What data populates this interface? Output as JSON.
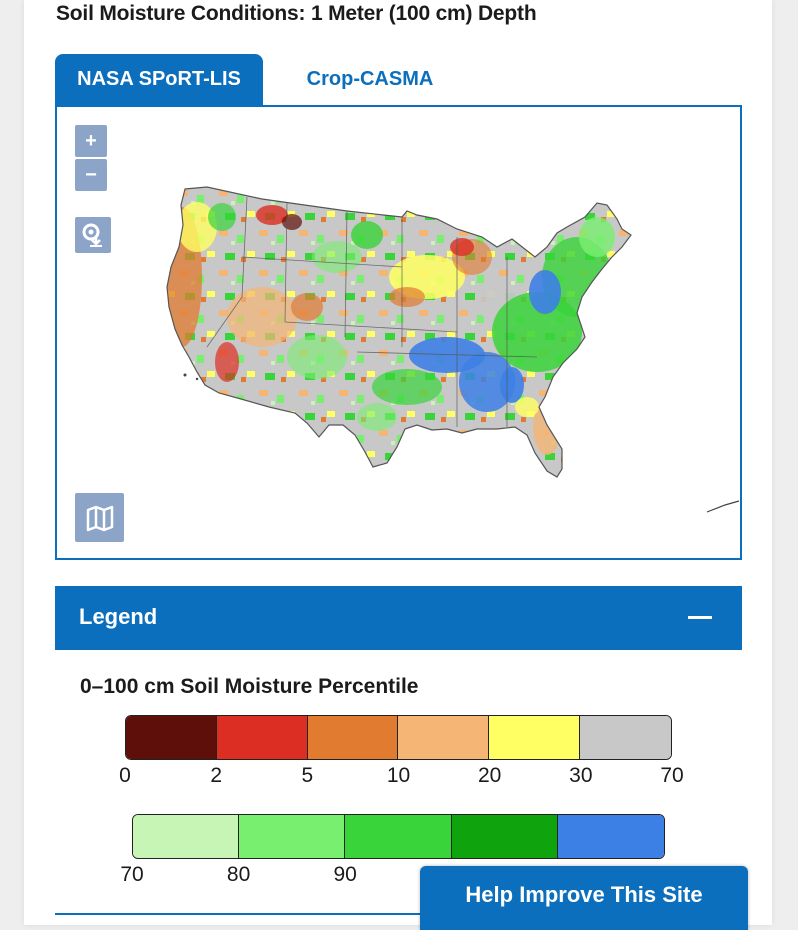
{
  "page": {
    "title": "Soil Moisture Conditions: 1 Meter (100 cm) Depth"
  },
  "tabs": [
    {
      "label": "NASA SPoRT-LIS",
      "active": true
    },
    {
      "label": "Crop-CASMA",
      "active": false
    }
  ],
  "map": {
    "zoom_in_label": "+",
    "zoom_out_label": "−",
    "icons": [
      "zoom-in-icon",
      "zoom-out-icon",
      "download-icon",
      "basemap-icon"
    ]
  },
  "legend": {
    "header": "Legend",
    "heading": "0–100 cm Soil Moisture Percentile",
    "dry_scale": {
      "colors": [
        "#5f0f0a",
        "#dc2e22",
        "#e07b30",
        "#f4b575",
        "#ffff63",
        "#c8c8c8"
      ],
      "ticks": [
        "0",
        "2",
        "5",
        "10",
        "20",
        "30",
        "70"
      ]
    },
    "wet_scale": {
      "colors": [
        "#c6f5b6",
        "#79ef6f",
        "#38d43a",
        "#0fa30e",
        "#3d80e5"
      ],
      "ticks": [
        "70",
        "80",
        "90"
      ]
    }
  },
  "help_button": "Help Improve This Site",
  "colors": {
    "accent": "#0b6fbd",
    "map_button": "#8ba4c7"
  }
}
